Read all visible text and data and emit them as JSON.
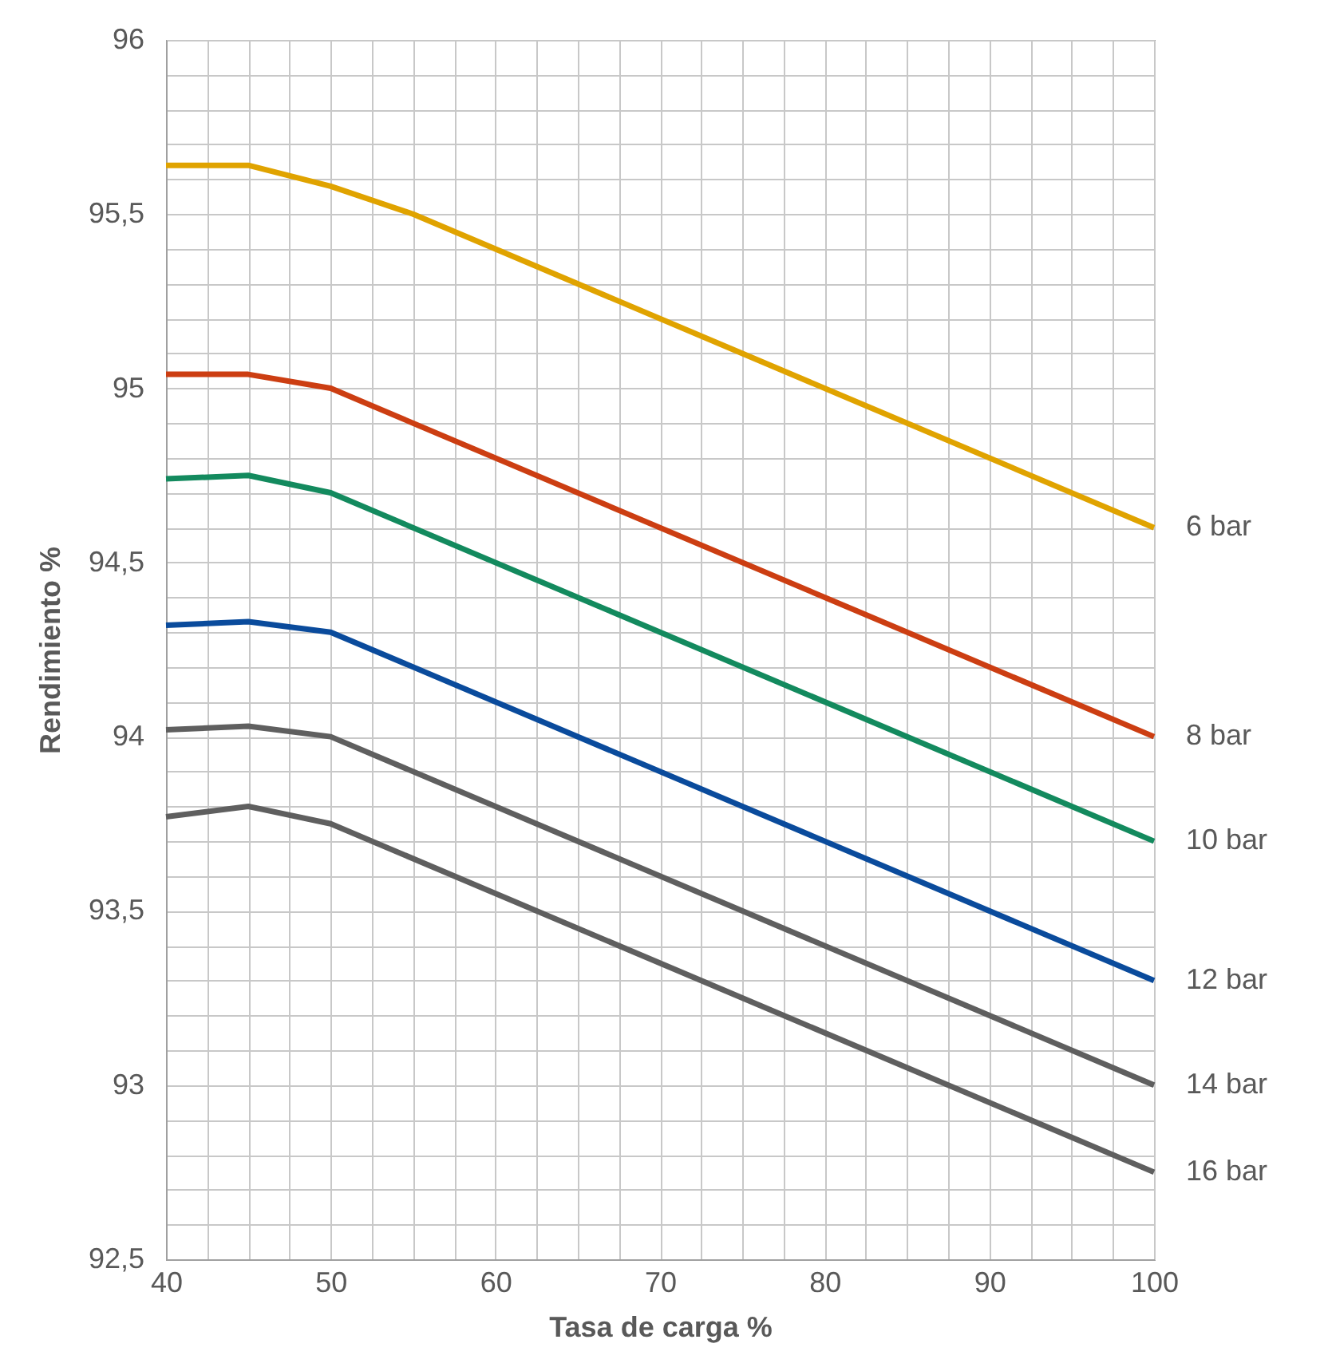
{
  "chart_data": {
    "type": "line",
    "xlabel": "Tasa de carga %",
    "ylabel": "Rendimiento  %",
    "xlim": [
      40,
      100
    ],
    "ylim": [
      92.5,
      96
    ],
    "xticks": [
      40,
      {
        "value": 42.5,
        "label": null
      },
      {
        "value": 45,
        "label": null
      },
      {
        "value": 47.5,
        "label": null
      },
      50,
      {
        "value": 52.5,
        "label": null
      },
      {
        "value": 55,
        "label": null
      },
      {
        "value": 57.5,
        "label": null
      },
      60,
      {
        "value": 62.5,
        "label": null
      },
      {
        "value": 65,
        "label": null
      },
      {
        "value": 67.5,
        "label": null
      },
      70,
      {
        "value": 72.5,
        "label": null
      },
      {
        "value": 75,
        "label": null
      },
      {
        "value": 77.5,
        "label": null
      },
      80,
      {
        "value": 82.5,
        "label": null
      },
      {
        "value": 85,
        "label": null
      },
      {
        "value": 87.5,
        "label": null
      },
      90,
      {
        "value": 92.5,
        "label": null
      },
      {
        "value": 95,
        "label": null
      },
      {
        "value": 97.5,
        "label": null
      },
      100
    ],
    "yticks": [
      {
        "value": 92.5,
        "label": "92,5"
      },
      {
        "value": 92.6,
        "label": null
      },
      {
        "value": 92.7,
        "label": null
      },
      {
        "value": 92.8,
        "label": null
      },
      {
        "value": 92.9,
        "label": null
      },
      93,
      {
        "value": 93.1,
        "label": null
      },
      {
        "value": 93.2,
        "label": null
      },
      {
        "value": 93.3,
        "label": null
      },
      {
        "value": 93.4,
        "label": null
      },
      {
        "value": 93.5,
        "label": "93,5"
      },
      {
        "value": 93.6,
        "label": null
      },
      {
        "value": 93.7,
        "label": null
      },
      {
        "value": 93.8,
        "label": null
      },
      {
        "value": 93.9,
        "label": null
      },
      94,
      {
        "value": 94.1,
        "label": null
      },
      {
        "value": 94.2,
        "label": null
      },
      {
        "value": 94.3,
        "label": null
      },
      {
        "value": 94.4,
        "label": null
      },
      {
        "value": 94.5,
        "label": "94,5"
      },
      {
        "value": 94.6,
        "label": null
      },
      {
        "value": 94.7,
        "label": null
      },
      {
        "value": 94.8,
        "label": null
      },
      {
        "value": 94.9,
        "label": null
      },
      95,
      {
        "value": 95.1,
        "label": null
      },
      {
        "value": 95.2,
        "label": null
      },
      {
        "value": 95.3,
        "label": null
      },
      {
        "value": 95.4,
        "label": null
      },
      {
        "value": 95.5,
        "label": "95,5"
      },
      {
        "value": 95.6,
        "label": null
      },
      {
        "value": 95.7,
        "label": null
      },
      {
        "value": 95.8,
        "label": null
      },
      {
        "value": 95.9,
        "label": null
      },
      96
    ],
    "grid": true,
    "legend": false,
    "marker": "none",
    "line_style": "solid",
    "series": [
      {
        "name": "6 bar",
        "color": "#e0a300",
        "x": [
          40,
          45,
          50,
          55,
          100
        ],
        "values": [
          95.64,
          95.64,
          95.58,
          95.5,
          94.6
        ]
      },
      {
        "name": "8 bar",
        "color": "#cc3e12",
        "x": [
          40,
          45,
          50,
          100
        ],
        "values": [
          95.04,
          95.04,
          95.0,
          94.0
        ]
      },
      {
        "name": "10 bar",
        "color": "#138a5e",
        "x": [
          40,
          45,
          50,
          100
        ],
        "values": [
          94.74,
          94.75,
          94.7,
          93.7
        ]
      },
      {
        "name": "12 bar",
        "color": "#0a4b9c",
        "x": [
          40,
          45,
          50,
          100
        ],
        "values": [
          94.32,
          94.33,
          94.3,
          93.3
        ]
      },
      {
        "name": "14 bar",
        "color": "#5f5f5f",
        "x": [
          40,
          45,
          50,
          100
        ],
        "values": [
          94.02,
          94.03,
          94.0,
          93.0
        ]
      },
      {
        "name": "16 bar",
        "color": "#5f5f5f",
        "x": [
          40,
          45,
          50,
          100
        ],
        "values": [
          93.77,
          93.8,
          93.75,
          92.75
        ]
      }
    ]
  }
}
